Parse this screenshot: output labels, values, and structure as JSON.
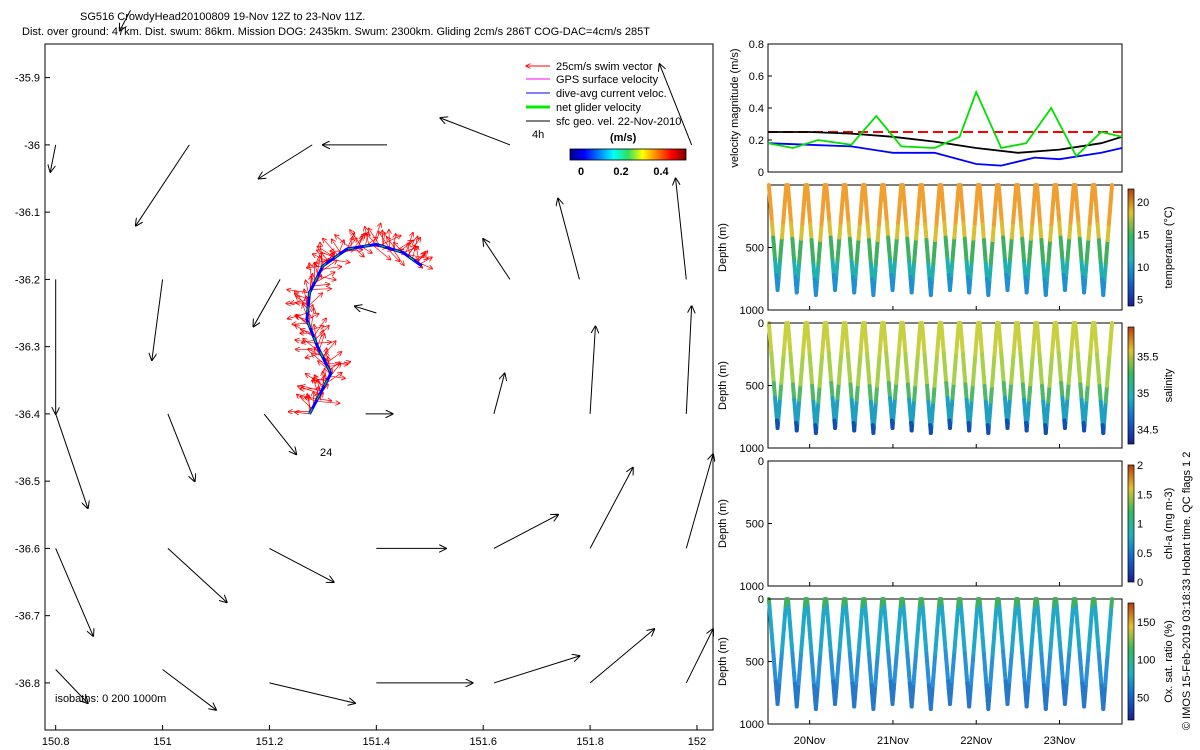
{
  "header": {
    "title": "SG516 CrowdyHead20100809 19-Nov 12Z to 23-Nov 11Z.",
    "subtitle": "Dist. over ground: 47km. Dist. swum: 86km. Mission DOG: 2435km. Swum: 2300km. Gliding 2cm/s 286T COG-DAC=4cm/s 285T"
  },
  "watermark": "© IMOS 15-Feb-2019 03:18:33 Hobart time. QC flags 1  2",
  "colors": {
    "swim": "#ff0000",
    "gps": "#ff00ff",
    "dac": "#0000ff",
    "net": "#00e000",
    "geo": "#000000"
  },
  "chart_data": [
    {
      "type": "scatter",
      "name": "map",
      "xlim": [
        150.78,
        152.03
      ],
      "ylim": [
        -36.87,
        -35.85
      ],
      "xticks": [
        "150.8",
        "151",
        "151.2",
        "151.4",
        "151.6",
        "151.8",
        "152"
      ],
      "xtick_values": [
        150.8,
        151.0,
        151.2,
        151.4,
        151.6,
        151.8,
        152.0
      ],
      "yticks": [
        "-35.9",
        "-36",
        "-36.1",
        "-36.2",
        "-36.3",
        "-36.4",
        "-36.5",
        "-36.6",
        "-36.7",
        "-36.8"
      ],
      "ytick_values": [
        -35.9,
        -36.0,
        -36.1,
        -36.2,
        -36.3,
        -36.4,
        -36.5,
        -36.6,
        -36.7,
        -36.8
      ],
      "legend": [
        {
          "label": "25cm/s swim vector",
          "color": "#ff0000"
        },
        {
          "label": "GPS surface velocity",
          "color": "#ff00ff"
        },
        {
          "label": "dive-avg current veloc.",
          "color": "#0000ff"
        },
        {
          "label": "net glider velocity",
          "color": "#00e000"
        },
        {
          "label": "sfc geo. vel. 22-Nov-2010",
          "color": "#000000"
        }
      ],
      "colorbar": {
        "label": "(m/s)",
        "ticks": [
          "0",
          "0.2",
          "0.4"
        ],
        "range": [
          0,
          0.5
        ]
      },
      "annotations": {
        "label_4h": "4h",
        "label_24": "24",
        "isobaths": "isobaths: 0   200   1000m"
      },
      "geostrophic_arrows": [
        [
          150.94,
          -35.8,
          -0.02,
          -0.03
        ],
        [
          151.28,
          -36.0,
          -0.1,
          -0.05
        ],
        [
          151.42,
          -36.0,
          -0.12,
          0.0
        ],
        [
          151.65,
          -36.0,
          -0.13,
          0.04
        ],
        [
          151.99,
          -36.0,
          -0.06,
          0.12
        ],
        [
          150.8,
          -36.0,
          -0.01,
          -0.04
        ],
        [
          151.05,
          -36.0,
          -0.1,
          -0.12
        ],
        [
          150.8,
          -36.2,
          0.0,
          -0.2
        ],
        [
          151.0,
          -36.2,
          -0.02,
          -0.12
        ],
        [
          151.22,
          -36.2,
          -0.05,
          -0.07
        ],
        [
          151.4,
          -36.25,
          -0.04,
          0.01
        ],
        [
          151.65,
          -36.2,
          -0.05,
          0.06
        ],
        [
          151.78,
          -36.2,
          -0.04,
          0.12
        ],
        [
          151.98,
          -36.2,
          -0.02,
          0.15
        ],
        [
          150.8,
          -36.4,
          0.06,
          -0.14
        ],
        [
          151.01,
          -36.4,
          0.05,
          -0.1
        ],
        [
          151.19,
          -36.4,
          0.06,
          -0.06
        ],
        [
          151.38,
          -36.4,
          0.05,
          0.0
        ],
        [
          151.62,
          -36.4,
          0.02,
          0.06
        ],
        [
          151.8,
          -36.4,
          0.01,
          0.13
        ],
        [
          151.98,
          -36.4,
          0.01,
          0.16
        ],
        [
          150.8,
          -36.6,
          0.07,
          -0.13
        ],
        [
          151.01,
          -36.6,
          0.11,
          -0.08
        ],
        [
          151.2,
          -36.6,
          0.12,
          -0.05
        ],
        [
          151.4,
          -36.6,
          0.13,
          0.0
        ],
        [
          151.62,
          -36.6,
          0.12,
          0.05
        ],
        [
          151.8,
          -36.6,
          0.08,
          0.12
        ],
        [
          151.98,
          -36.6,
          0.05,
          0.14
        ],
        [
          150.8,
          -36.78,
          0.06,
          -0.05
        ],
        [
          151.0,
          -36.78,
          0.1,
          -0.06
        ],
        [
          151.2,
          -36.8,
          0.16,
          -0.03
        ],
        [
          151.4,
          -36.8,
          0.18,
          0.0
        ],
        [
          151.62,
          -36.8,
          0.16,
          0.04
        ],
        [
          151.8,
          -36.8,
          0.12,
          0.08
        ],
        [
          151.98,
          -36.8,
          0.05,
          0.08
        ]
      ],
      "track": [
        [
          151.275,
          -36.4
        ],
        [
          151.295,
          -36.37
        ],
        [
          151.315,
          -36.34
        ],
        [
          151.29,
          -36.3
        ],
        [
          151.27,
          -36.26
        ],
        [
          151.275,
          -36.22
        ],
        [
          151.3,
          -36.18
        ],
        [
          151.345,
          -36.155
        ],
        [
          151.4,
          -36.148
        ],
        [
          151.45,
          -36.16
        ],
        [
          151.485,
          -36.18
        ]
      ]
    },
    {
      "type": "line",
      "name": "velocity",
      "ylabel": "velocity magnitude (m/s)",
      "ylim": [
        0,
        0.8
      ],
      "yticks": [
        "0",
        "0.2",
        "0.4",
        "0.6",
        "0.8"
      ],
      "xlim": [
        19.5,
        23.75
      ],
      "series": [
        {
          "color": "#ff0000",
          "style": "dashed",
          "x": [
            19.5,
            23.75
          ],
          "values": [
            0.25,
            0.25
          ]
        },
        {
          "color": "#000000",
          "x": [
            19.5,
            20.0,
            20.5,
            21.0,
            21.5,
            22.0,
            22.5,
            23.0,
            23.5,
            23.75
          ],
          "values": [
            0.25,
            0.25,
            0.24,
            0.22,
            0.19,
            0.15,
            0.12,
            0.14,
            0.18,
            0.22
          ]
        },
        {
          "color": "#0000ff",
          "x": [
            19.5,
            20.0,
            20.5,
            21.0,
            21.5,
            22.0,
            22.3,
            22.7,
            23.0,
            23.5,
            23.75
          ],
          "values": [
            0.18,
            0.17,
            0.16,
            0.12,
            0.12,
            0.05,
            0.04,
            0.09,
            0.08,
            0.12,
            0.15
          ]
        },
        {
          "color": "#00e000",
          "x": [
            19.5,
            19.8,
            20.1,
            20.5,
            20.8,
            21.1,
            21.5,
            21.8,
            22.0,
            22.3,
            22.6,
            22.9,
            23.2,
            23.5,
            23.75
          ],
          "values": [
            0.18,
            0.15,
            0.2,
            0.17,
            0.35,
            0.16,
            0.15,
            0.22,
            0.5,
            0.15,
            0.18,
            0.4,
            0.1,
            0.25,
            0.22
          ]
        }
      ]
    },
    {
      "type": "heatmap",
      "name": "temperature",
      "ylabel": "Depth (m)",
      "ylim": [
        1000,
        0
      ],
      "yticks": [
        "500",
        "1000"
      ],
      "colorbar_label": "temperature (°C)",
      "colorbar_ticks": [
        "5",
        "10",
        "15",
        "20"
      ],
      "crange": [
        4,
        22
      ]
    },
    {
      "type": "heatmap",
      "name": "salinity",
      "ylabel": "Depth (m)",
      "ylim": [
        1000,
        0
      ],
      "yticks": [
        "0",
        "500",
        "1000"
      ],
      "colorbar_label": "salinity",
      "colorbar_ticks": [
        "34.5",
        "35",
        "35.5"
      ],
      "crange": [
        34.3,
        35.9
      ]
    },
    {
      "type": "heatmap",
      "name": "chla",
      "ylabel": "Depth (m)",
      "ylim": [
        1000,
        0
      ],
      "yticks": [
        "0",
        "500",
        "1000"
      ],
      "colorbar_label": "chl-a (mg m-3)",
      "colorbar_ticks": [
        "0",
        "0.5",
        "1",
        "1.5",
        "2"
      ],
      "crange": [
        0,
        2
      ]
    },
    {
      "type": "heatmap",
      "name": "oxygen",
      "ylabel": "Depth (m)",
      "ylim": [
        1000,
        0
      ],
      "yticks": [
        "0",
        "500",
        "1000"
      ],
      "colorbar_label": "Ox. sat. ratio (%)",
      "colorbar_ticks": [
        "50",
        "100",
        "150"
      ],
      "crange": [
        20,
        175
      ],
      "xticks": [
        "20Nov",
        "21Nov",
        "22Nov",
        "23Nov"
      ],
      "xtick_values": [
        20,
        21,
        22,
        23
      ]
    }
  ]
}
